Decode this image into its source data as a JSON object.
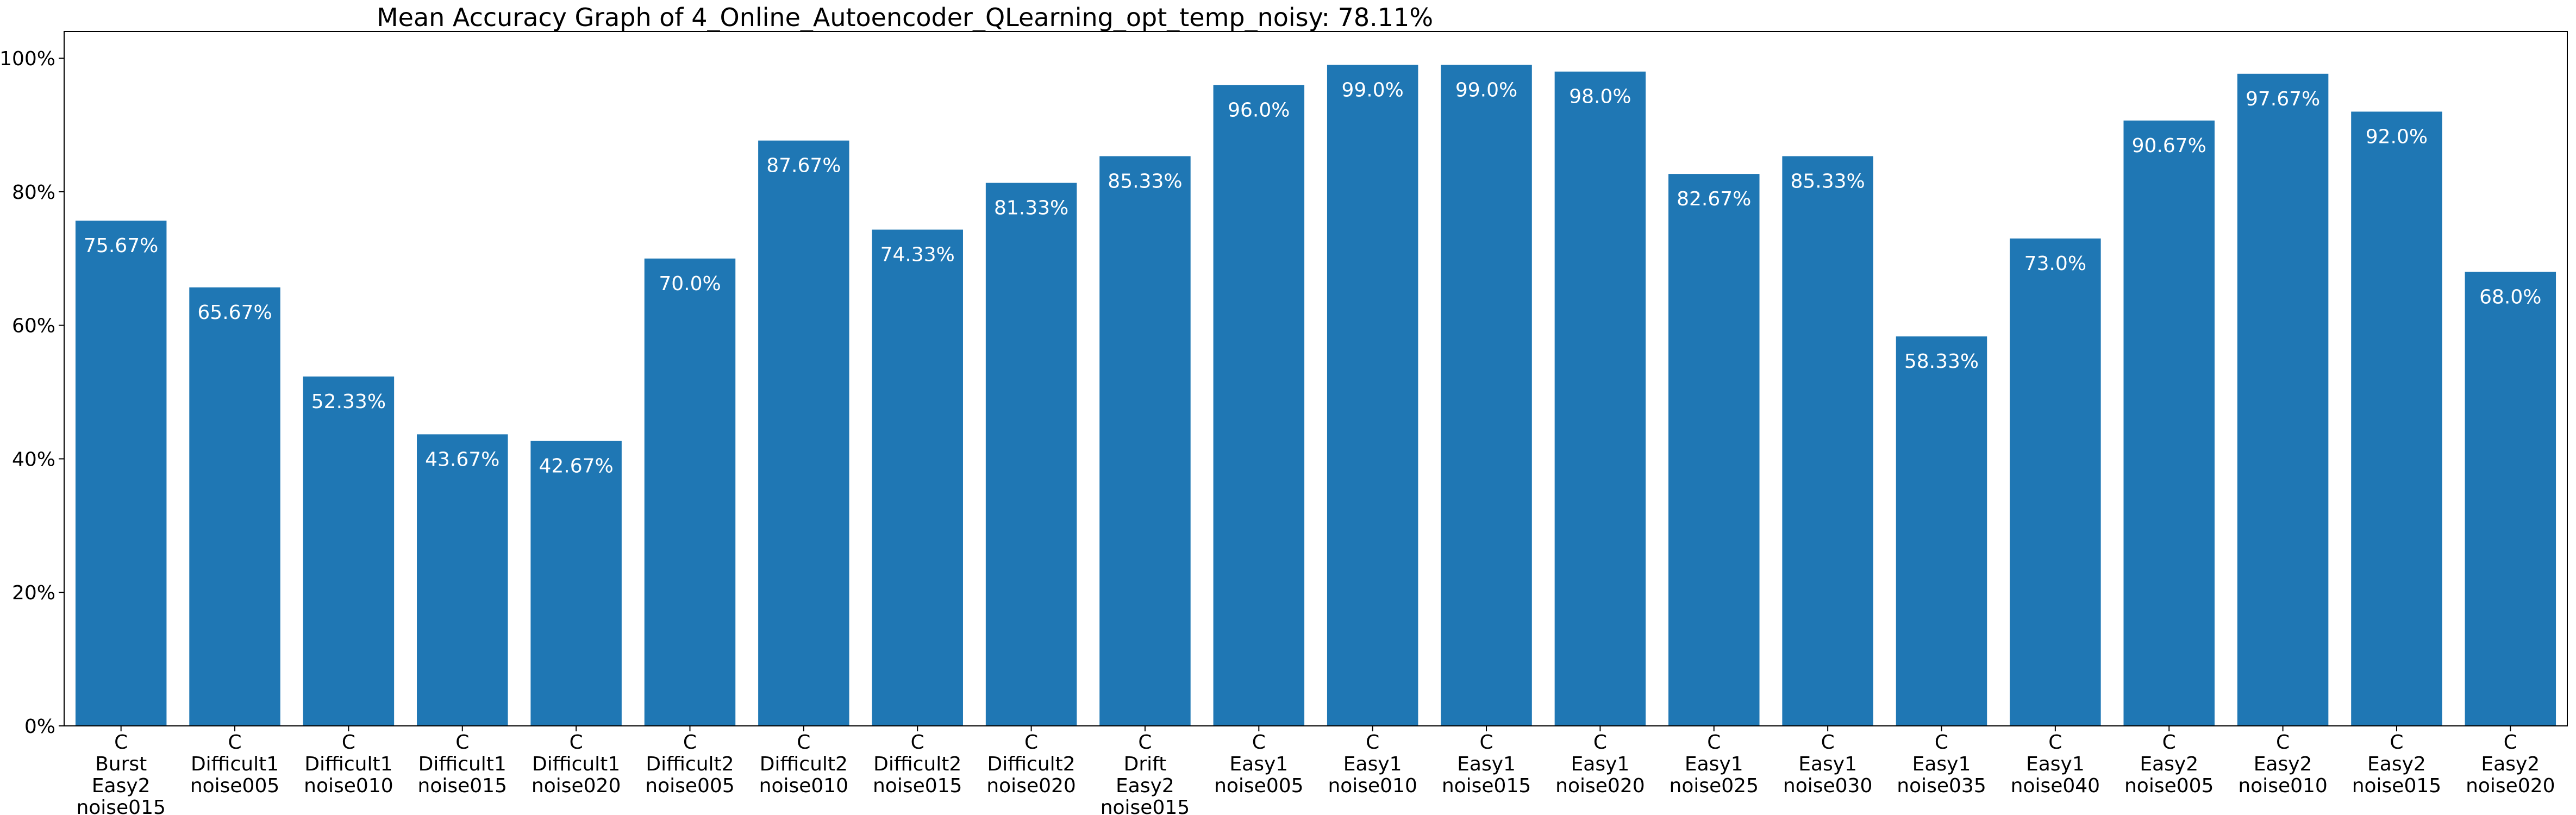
{
  "chart_data": {
    "type": "bar",
    "title": "Mean Accuracy Graph of 4_Online_Autoencoder_QLearning_opt_temp_noisy: 78.11%",
    "xlabel": "",
    "ylabel": "",
    "ylim": [
      0,
      104
    ],
    "y_ticks": [
      0,
      20,
      40,
      60,
      80,
      100
    ],
    "y_tick_labels": [
      "0%",
      "20%",
      "40%",
      "60%",
      "80%",
      "100%"
    ],
    "grid": false,
    "bar_color": "#1f77b4",
    "label_color": "#ffffff",
    "categories": [
      [
        "C",
        "Burst",
        "Easy2",
        "noise015"
      ],
      [
        "C",
        "Difficult1",
        "noise005"
      ],
      [
        "C",
        "Difficult1",
        "noise010"
      ],
      [
        "C",
        "Difficult1",
        "noise015"
      ],
      [
        "C",
        "Difficult1",
        "noise020"
      ],
      [
        "C",
        "Difficult2",
        "noise005"
      ],
      [
        "C",
        "Difficult2",
        "noise010"
      ],
      [
        "C",
        "Difficult2",
        "noise015"
      ],
      [
        "C",
        "Difficult2",
        "noise020"
      ],
      [
        "C",
        "Drift",
        "Easy2",
        "noise015"
      ],
      [
        "C",
        "Easy1",
        "noise005"
      ],
      [
        "C",
        "Easy1",
        "noise010"
      ],
      [
        "C",
        "Easy1",
        "noise015"
      ],
      [
        "C",
        "Easy1",
        "noise020"
      ],
      [
        "C",
        "Easy1",
        "noise025"
      ],
      [
        "C",
        "Easy1",
        "noise030"
      ],
      [
        "C",
        "Easy1",
        "noise035"
      ],
      [
        "C",
        "Easy1",
        "noise040"
      ],
      [
        "C",
        "Easy2",
        "noise005"
      ],
      [
        "C",
        "Easy2",
        "noise010"
      ],
      [
        "C",
        "Easy2",
        "noise015"
      ],
      [
        "C",
        "Easy2",
        "noise020"
      ]
    ],
    "values": [
      75.67,
      65.67,
      52.33,
      43.67,
      42.67,
      70.0,
      87.67,
      74.33,
      81.33,
      85.33,
      96.0,
      99.0,
      99.0,
      98.0,
      82.67,
      85.33,
      58.33,
      73.0,
      90.67,
      97.67,
      92.0,
      68.0
    ],
    "value_labels": [
      "75.67%",
      "65.67%",
      "52.33%",
      "43.67%",
      "42.67%",
      "70.0%",
      "87.67%",
      "74.33%",
      "81.33%",
      "85.33%",
      "96.0%",
      "99.0%",
      "99.0%",
      "98.0%",
      "82.67%",
      "85.33%",
      "58.33%",
      "73.0%",
      "90.67%",
      "97.67%",
      "92.0%",
      "68.0%"
    ]
  }
}
